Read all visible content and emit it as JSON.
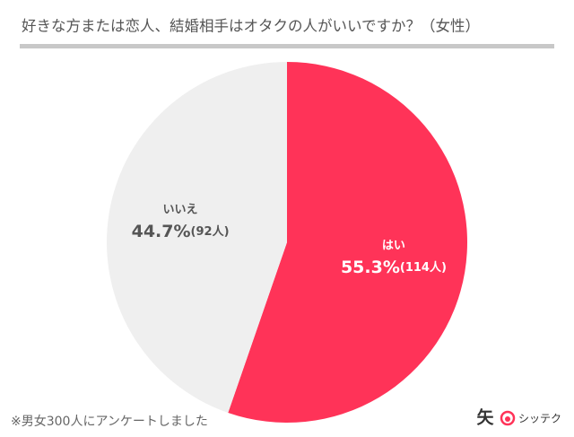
{
  "chart_data": {
    "type": "pie",
    "title": "好きな方または恋人、結婚相手はオタクの人がいいですか？（女性）",
    "categories": [
      "はい",
      "いいえ"
    ],
    "values": [
      55.3,
      44.7
    ],
    "value_labels": [
      "55.3%",
      "44.7%"
    ],
    "count_labels": [
      "(114人)",
      "(92人)"
    ],
    "colors": [
      "#ff3358",
      "#efefef"
    ],
    "label_colors": [
      "#ffffff",
      "#555555"
    ],
    "note": "※男女300人にアンケートしました"
  },
  "logo": {
    "mark": "矢",
    "text": "シッテク"
  }
}
